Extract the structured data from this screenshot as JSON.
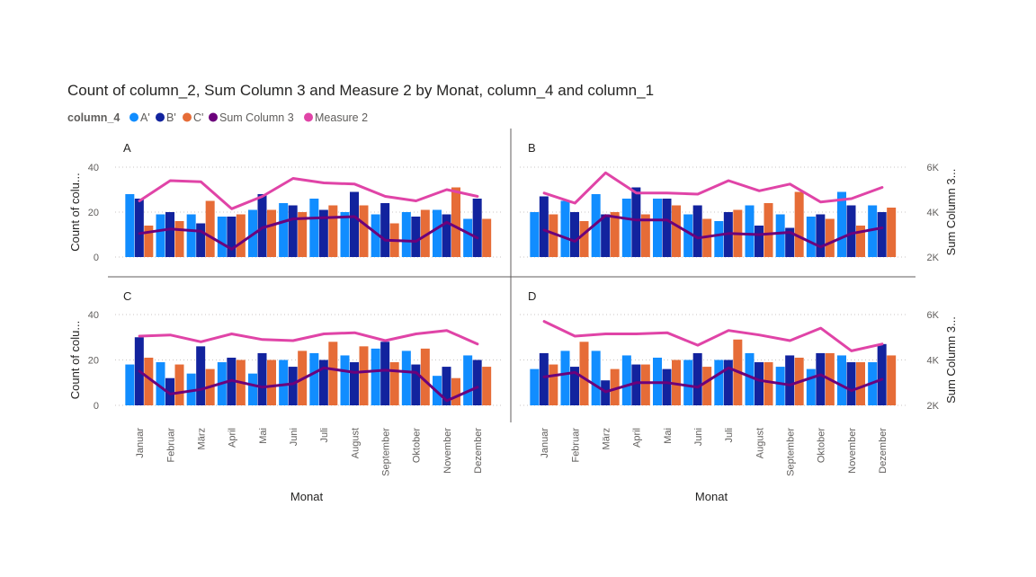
{
  "chart_data": {
    "type": "bar",
    "title": "Count of column_2, Sum Column 3 and Measure 2 by Monat, column_4 and column_1",
    "legend": {
      "title": "column_4",
      "items": [
        {
          "name": "A'",
          "color": "#118DFF",
          "kind": "bar"
        },
        {
          "name": "B'",
          "color": "#12239E",
          "kind": "bar"
        },
        {
          "name": "C'",
          "color": "#E66C37",
          "kind": "bar"
        },
        {
          "name": "Sum Column 3",
          "color": "#6B007B",
          "kind": "line"
        },
        {
          "name": "Measure 2",
          "color": "#E044A7",
          "kind": "line"
        }
      ]
    },
    "categories": [
      "Januar",
      "Februar",
      "März",
      "April",
      "Mai",
      "Juni",
      "Juli",
      "August",
      "September",
      "Oktober",
      "November",
      "Dezember"
    ],
    "xlabel": "Monat",
    "ylabel_left": "Count of colu...",
    "ylabel_right": "Sum Column 3...",
    "y_left": {
      "min": 0,
      "max": 40,
      "ticks": [
        0,
        20,
        40
      ]
    },
    "y_right": {
      "min": 2000,
      "max": 6000,
      "ticks": [
        2000,
        4000,
        6000
      ],
      "tick_labels": [
        "2K",
        "4K",
        "6K"
      ]
    },
    "panels": [
      {
        "label": "A",
        "series": [
          {
            "name": "A'",
            "values": [
              28,
              19,
              19,
              18,
              21,
              24,
              26,
              20,
              19,
              20,
              21,
              17
            ]
          },
          {
            "name": "B'",
            "values": [
              26,
              20,
              15,
              18,
              28,
              23,
              21,
              29,
              24,
              18,
              19,
              26
            ]
          },
          {
            "name": "C'",
            "values": [
              14,
              16,
              25,
              19,
              21,
              20,
              23,
              23,
              15,
              21,
              31,
              17
            ]
          },
          {
            "name": "Sum Column 3",
            "values": [
              3050,
              3250,
              3150,
              2350,
              3300,
              3700,
              3750,
              3800,
              2750,
              2700,
              3550,
              2850
            ]
          },
          {
            "name": "Measure 2",
            "values": [
              4500,
              5400,
              5350,
              4150,
              4700,
              5500,
              5300,
              5250,
              4700,
              4500,
              5000,
              4700
            ]
          }
        ]
      },
      {
        "label": "B",
        "series": [
          {
            "name": "A'",
            "values": [
              20,
              25,
              28,
              26,
              26,
              19,
              16,
              23,
              19,
              18,
              29,
              23
            ]
          },
          {
            "name": "B'",
            "values": [
              27,
              20,
              19,
              31,
              26,
              23,
              20,
              14,
              13,
              19,
              23,
              20
            ]
          },
          {
            "name": "C'",
            "values": [
              19,
              16,
              20,
              19,
              23,
              17,
              21,
              24,
              29,
              17,
              14,
              22
            ]
          },
          {
            "name": "Sum Column 3",
            "values": [
              3200,
              2700,
              3850,
              3650,
              3650,
              2850,
              3050,
              3000,
              3100,
              2450,
              3050,
              3300
            ]
          },
          {
            "name": "Measure 2",
            "values": [
              4850,
              4400,
              5750,
              4850,
              4850,
              4800,
              5400,
              4950,
              5250,
              4450,
              4600,
              5100
            ]
          }
        ]
      },
      {
        "label": "C",
        "series": [
          {
            "name": "A'",
            "values": [
              18,
              19,
              14,
              19,
              14,
              20,
              23,
              22,
              25,
              24,
              13,
              22
            ]
          },
          {
            "name": "B'",
            "values": [
              30,
              12,
              26,
              21,
              23,
              17,
              20,
              19,
              28,
              18,
              17,
              20
            ]
          },
          {
            "name": "C'",
            "values": [
              21,
              18,
              16,
              20,
              20,
              24,
              28,
              26,
              19,
              25,
              12,
              17
            ]
          },
          {
            "name": "Sum Column 3",
            "values": [
              3500,
              2500,
              2700,
              3100,
              2800,
              2950,
              3650,
              3450,
              3550,
              3450,
              2200,
              2800
            ]
          },
          {
            "name": "Measure 2",
            "values": [
              5050,
              5100,
              4800,
              5150,
              4900,
              4850,
              5150,
              5200,
              4850,
              5150,
              5300,
              4700
            ]
          }
        ]
      },
      {
        "label": "D",
        "series": [
          {
            "name": "A'",
            "values": [
              16,
              24,
              24,
              22,
              21,
              20,
              20,
              23,
              17,
              16,
              22,
              19
            ]
          },
          {
            "name": "B'",
            "values": [
              23,
              17,
              11,
              18,
              16,
              23,
              20,
              19,
              22,
              23,
              19,
              27
            ]
          },
          {
            "name": "C'",
            "values": [
              18,
              28,
              16,
              18,
              20,
              17,
              29,
              19,
              21,
              23,
              19,
              22
            ]
          },
          {
            "name": "Sum Column 3",
            "values": [
              3250,
              3450,
              2600,
              3000,
              3000,
              2800,
              3650,
              3100,
              2900,
              3350,
              2650,
              3150
            ]
          },
          {
            "name": "Measure 2",
            "values": [
              5700,
              5050,
              5150,
              5150,
              5200,
              4650,
              5300,
              5100,
              4850,
              5400,
              4400,
              4700
            ]
          }
        ]
      }
    ]
  }
}
